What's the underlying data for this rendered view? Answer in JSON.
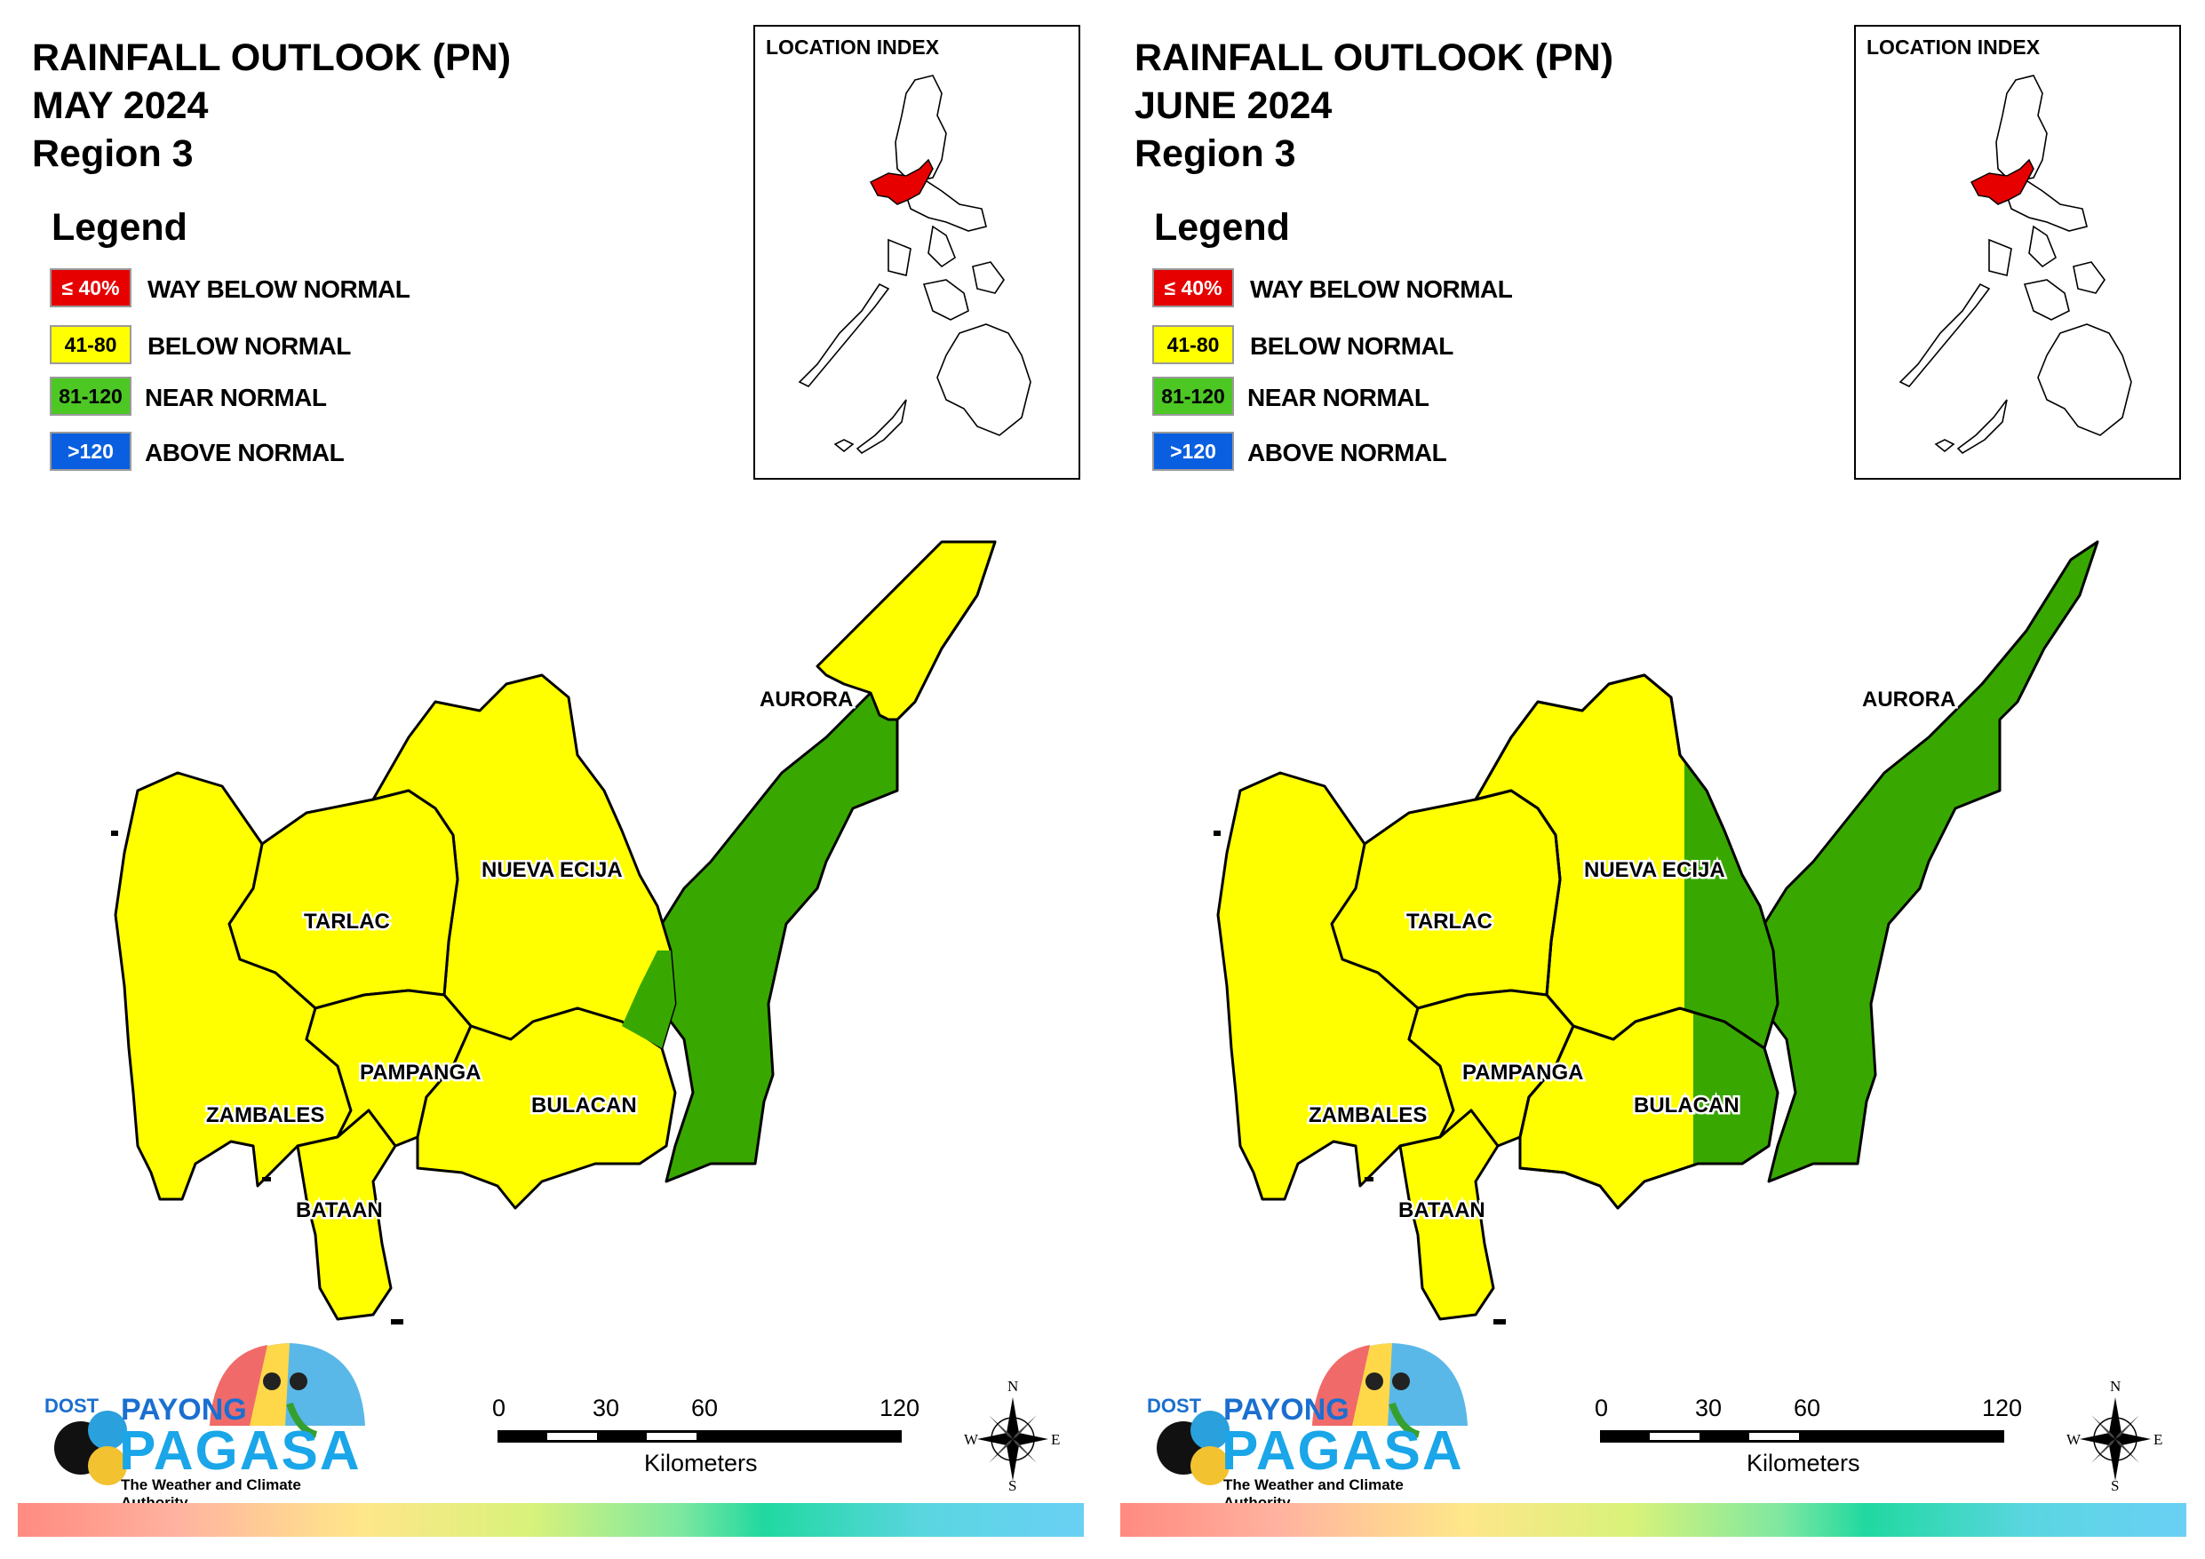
{
  "panels": [
    {
      "title": [
        "RAINFALL OUTLOOK (PN)",
        "MAY 2024",
        "Region 3"
      ],
      "nueva_ecija_east_class": "below",
      "bulacan_east_class": "below"
    },
    {
      "title": [
        "RAINFALL OUTLOOK (PN)",
        "JUNE 2024",
        "Region 3"
      ],
      "nueva_ecija_east_class": "near",
      "bulacan_east_class": "near"
    }
  ],
  "legend": {
    "title": "Legend",
    "items": [
      {
        "range": "≤ 40%",
        "label": "WAY BELOW NORMAL",
        "color": "#e60000",
        "text_color": "#ffffff"
      },
      {
        "range": "41-80",
        "label": "BELOW NORMAL",
        "color": "#ffff00",
        "text_color": "#000000"
      },
      {
        "range": "81-120",
        "label": "NEAR NORMAL",
        "color": "#4cc724",
        "text_color": "#000000"
      },
      {
        "range": ">120",
        "label": "ABOVE NORMAL",
        "color": "#0a5fe0",
        "text_color": "#ffffff"
      }
    ]
  },
  "inset": {
    "title": "LOCATION INDEX",
    "highlight_color": "#e60000"
  },
  "provinces": [
    "AURORA",
    "NUEVA ECIJA",
    "TARLAC",
    "ZAMBALES",
    "PAMPANGA",
    "BULACAN",
    "BATAAN"
  ],
  "colors": {
    "below": "#ffff00",
    "near": "#38a800",
    "outline": "#000000"
  },
  "scale": {
    "ticks": [
      "0",
      "30",
      "60",
      "120"
    ],
    "unit": "Kilometers"
  },
  "compass": {
    "n": "N",
    "s": "S",
    "e": "E",
    "w": "W"
  },
  "logo": {
    "dost": "DOST",
    "payong": "PAYONG",
    "pagasa": "PAGASA",
    "tagline": "The Weather and Climate Authority"
  }
}
